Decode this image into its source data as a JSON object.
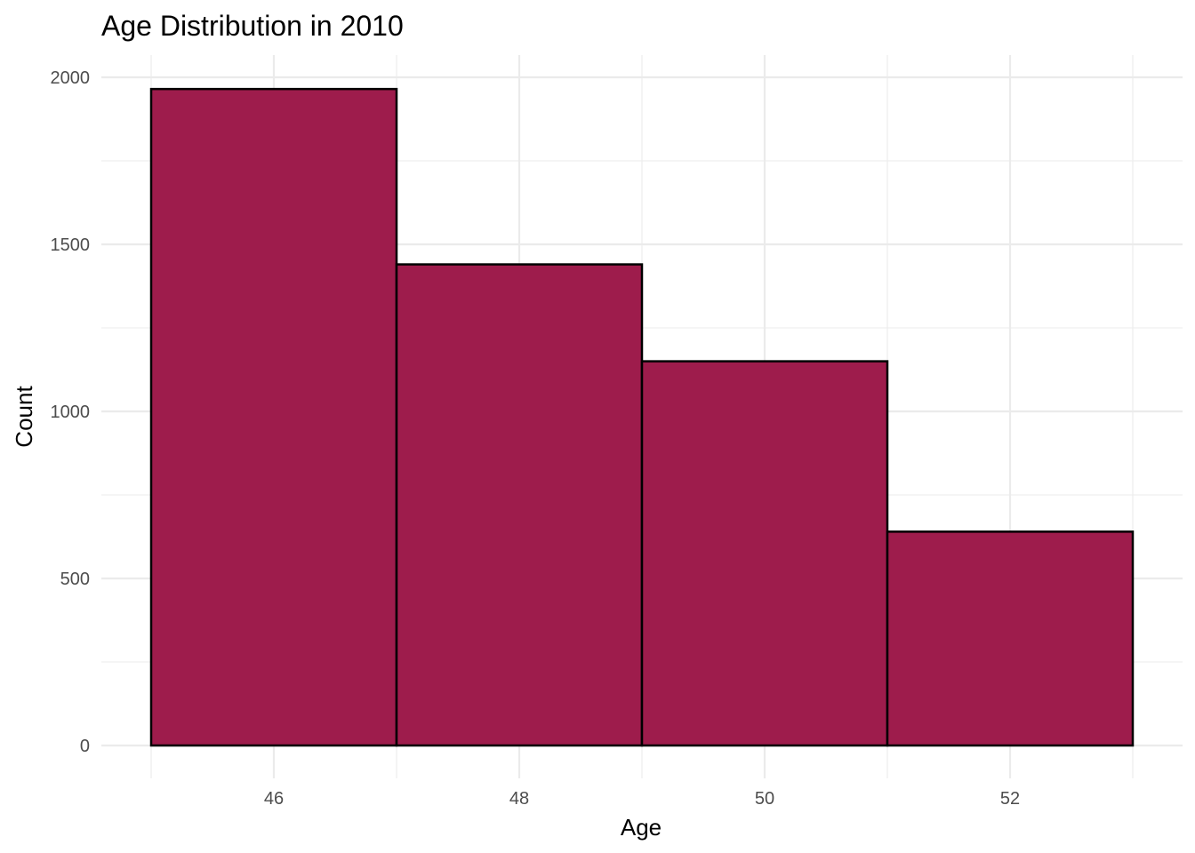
{
  "chart_data": {
    "type": "bar",
    "subtype": "histogram",
    "title": "Age Distribution in 2010",
    "xlabel": "Age",
    "ylabel": "Count",
    "bins": [
      {
        "x_start": 45,
        "x_end": 47,
        "count": 1965
      },
      {
        "x_start": 47,
        "x_end": 49,
        "count": 1440
      },
      {
        "x_start": 49,
        "x_end": 51,
        "count": 1150
      },
      {
        "x_start": 51,
        "x_end": 53,
        "count": 640
      }
    ],
    "xlim": [
      45,
      53
    ],
    "ylim": [
      0,
      2000
    ],
    "x_ticks": [
      "46",
      "48",
      "50",
      "52"
    ],
    "x_tick_values": [
      46,
      48,
      50,
      52
    ],
    "y_ticks": [
      "0",
      "500",
      "1000",
      "1500",
      "2000"
    ],
    "y_tick_values": [
      0,
      500,
      1000,
      1500,
      2000
    ],
    "grid": true,
    "colors": {
      "fill": "#9e1c4c",
      "outline": "#000000",
      "grid": "#ebebeb"
    }
  }
}
